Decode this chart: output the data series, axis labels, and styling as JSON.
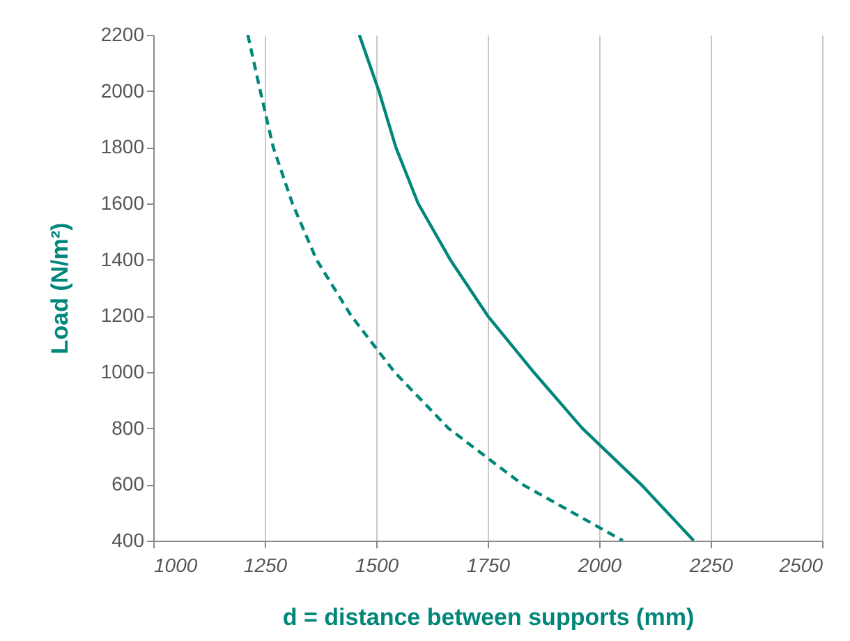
{
  "chart_data": {
    "type": "line",
    "xlabel": "d = distance between supports (mm)",
    "ylabel": "Load (N/m²)",
    "xlim": [
      1000,
      2500
    ],
    "xticks": [
      1000,
      1250,
      1500,
      1750,
      2000,
      2250,
      2500
    ],
    "ylim": [
      400,
      2200
    ],
    "yticks": [
      400,
      600,
      800,
      1000,
      1200,
      1400,
      1600,
      1800,
      2000,
      2200
    ],
    "grid": "x",
    "marker": "none",
    "series": [
      {
        "color": "#00877a",
        "line_style": "solid",
        "x": [
          1462,
          1506,
          1544,
          1594,
          1666,
          1750,
          1853,
          1962,
          2094,
          2212
        ],
        "values": [
          2200,
          2000,
          1800,
          1600,
          1400,
          1200,
          1000,
          800,
          600,
          400
        ]
      },
      {
        "color": "#00877a",
        "line_style": "dashed",
        "x": [
          1212,
          1240,
          1269,
          1312,
          1366,
          1444,
          1541,
          1662,
          1828,
          2053
        ],
        "values": [
          2200,
          2000,
          1800,
          1600,
          1400,
          1200,
          1000,
          800,
          600,
          400
        ]
      }
    ]
  }
}
